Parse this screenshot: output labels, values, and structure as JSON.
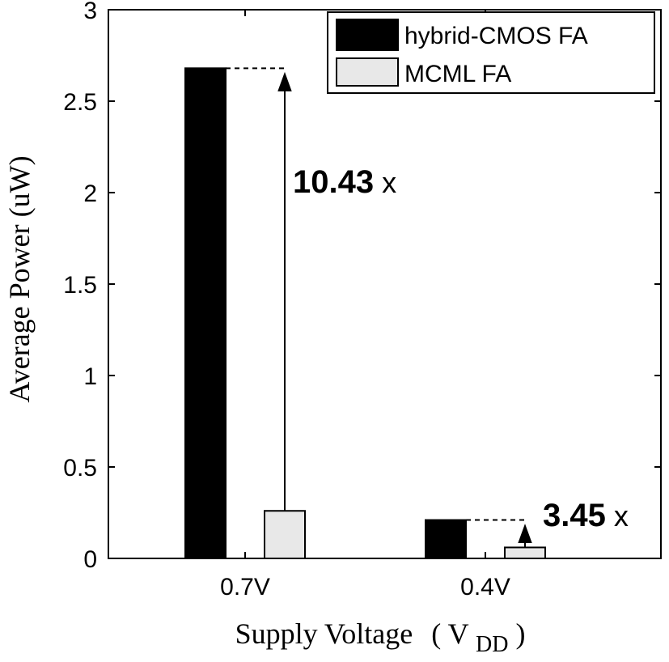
{
  "chart_data": {
    "type": "bar",
    "title": "",
    "xlabel": "Supply Voltage",
    "xlabel_paren_open": "(",
    "xlabel_var": "V",
    "xlabel_sub": "DD",
    "xlabel_paren_close": ")",
    "ylabel": "Average Power  (uW)",
    "ylim": [
      0,
      3
    ],
    "yticks": [
      0,
      0.5,
      1,
      1.5,
      2,
      2.5,
      3
    ],
    "ytick_labels": [
      "0",
      "0.5",
      "1",
      "1.5",
      "2",
      "2.5",
      "3"
    ],
    "categories": [
      "0.7V",
      "0.4V"
    ],
    "series": [
      {
        "name": "hybrid-CMOS FA",
        "values": [
          2.68,
          0.21
        ],
        "color": "#000000"
      },
      {
        "name": "MCML FA",
        "values": [
          0.26,
          0.06
        ],
        "color": "#e8e8e8"
      }
    ],
    "legend_position": "top-right",
    "annotations": [
      {
        "text": "10.43",
        "suffix": " x",
        "category_index": 0
      },
      {
        "text": "3.45",
        "suffix": " x",
        "category_index": 1
      }
    ],
    "grid": false
  }
}
